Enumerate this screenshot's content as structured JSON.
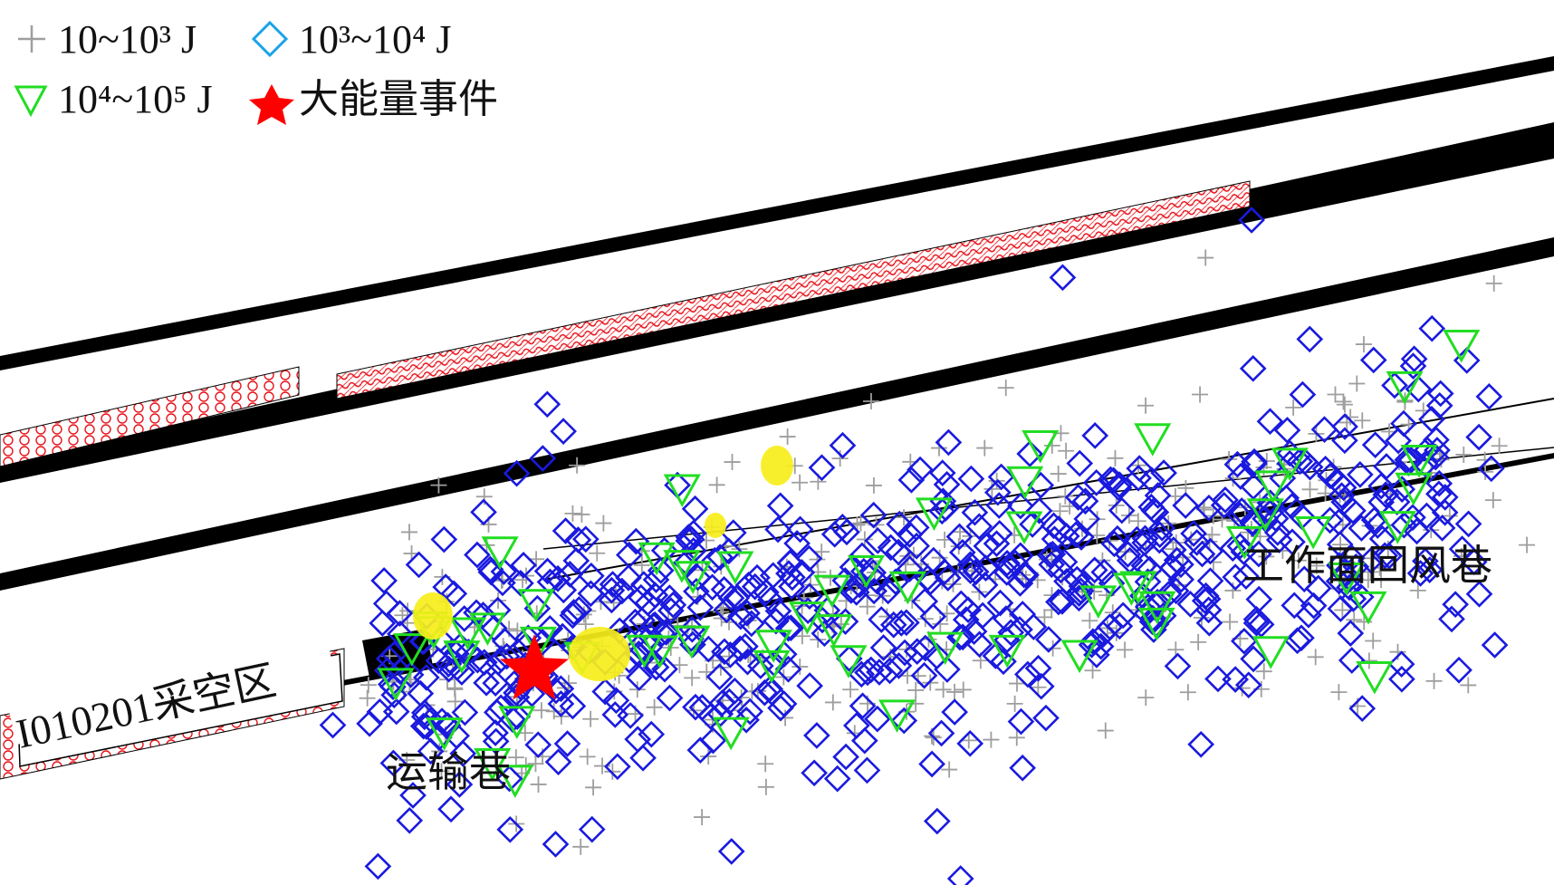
{
  "chart_data": {
    "type": "scatter",
    "title": "",
    "legend_position": "top-left",
    "legend": [
      {
        "key": "small",
        "label": "10~10³ J",
        "marker": "plus",
        "color": "#9e9e9e"
      },
      {
        "key": "medium",
        "label": "10³~10⁴ J",
        "marker": "diamond",
        "color": "#1aa3e8"
      },
      {
        "key": "large",
        "label": "10⁴~10⁵ J",
        "marker": "triangle-down",
        "color": "#22dd22"
      },
      {
        "key": "major",
        "label": "大能量事件",
        "marker": "star",
        "color": "#ff0000"
      }
    ],
    "region_labels": {
      "goaf": "I010201采空区",
      "transport": "运输巷",
      "return_air": "工作面回风巷"
    },
    "colors": {
      "plus": "#9e9e9e",
      "diamond_plot": "#1a1adf",
      "diamond_legend": "#1aa3e8",
      "triangle": "#22dd22",
      "star": "#ff0000",
      "highlight": "#f7ee1a",
      "goaf_fill": "#e8141c",
      "roadway": "#000000"
    },
    "notes": "microseismic event distribution; point cloud densest along transport roadway near the working face"
  }
}
